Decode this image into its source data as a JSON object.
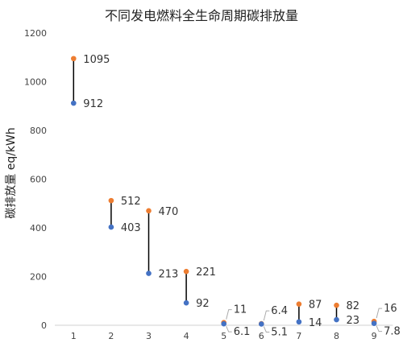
{
  "chart_data": {
    "type": "scatter",
    "title": "不同发电燃料全生命周期碳排放量",
    "ylabel": "碳排放量 eq/kWh",
    "xlabel": "",
    "categories": [
      "1",
      "2",
      "3",
      "4",
      "5",
      "6",
      "7",
      "8",
      "9"
    ],
    "ylim": [
      0,
      1200
    ],
    "yticks": [
      "0",
      "200",
      "400",
      "600",
      "800",
      "1000",
      "1200"
    ],
    "series": [
      {
        "values": [
          1095,
          512,
          470,
          221,
          11,
          6.4,
          87,
          82,
          16
        ],
        "color": "#ED7D31"
      },
      {
        "values": [
          912,
          403,
          213,
          92,
          6.1,
          5.1,
          14,
          23,
          7.8
        ],
        "color": "#4472C4"
      }
    ],
    "high_labels": [
      "1095",
      "512",
      "470",
      "221",
      "11",
      "6.4",
      "87",
      "82",
      "16"
    ],
    "low_labels": [
      "912",
      "403",
      "213",
      "92",
      "6.1",
      "5.1",
      "14",
      "23",
      "7.8"
    ],
    "range_line_color": "#000000",
    "grid": false,
    "legend": "none"
  }
}
